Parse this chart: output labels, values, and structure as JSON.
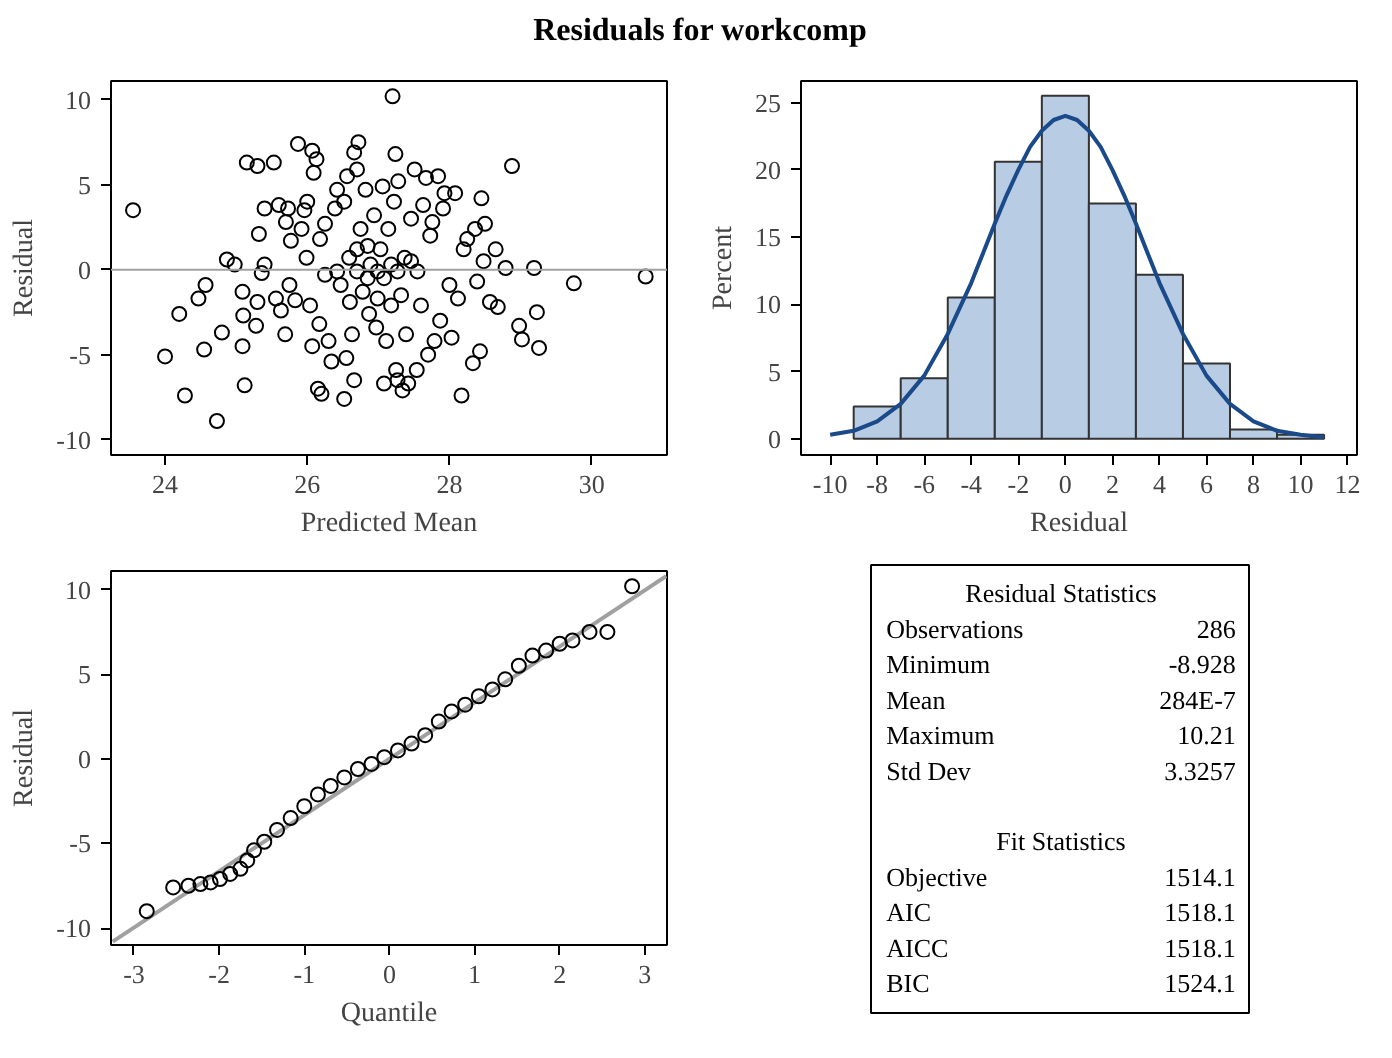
{
  "chart_data": [
    {
      "type": "scatter",
      "title": "Residuals for workcomp",
      "xlabel": "Predicted Mean",
      "ylabel": "Residual",
      "marker": "circle",
      "xlim": [
        23.24,
        31.06
      ],
      "ylim": [
        -10.9,
        11.1
      ],
      "xticks": [
        24,
        26,
        28,
        30
      ],
      "yticks": [
        -10,
        -5,
        0,
        5,
        10
      ],
      "ref_lines": [
        {
          "axis": "y",
          "value": 0,
          "color": "#a0a0a0"
        }
      ],
      "series": [
        {
          "color": "#000000",
          "x": [
            23.55,
            24.0,
            24.2,
            24.28,
            24.47,
            24.55,
            24.57,
            24.73,
            24.8,
            24.87,
            24.98,
            25.09,
            25.09,
            25.12,
            25.15,
            25.1,
            25.28,
            25.3,
            25.32,
            25.3,
            25.36,
            25.4,
            25.4,
            25.53,
            25.56,
            25.6,
            25.63,
            25.69,
            25.7,
            25.73,
            25.75,
            25.77,
            25.83,
            25.87,
            25.92,
            25.96,
            25.99,
            26.0,
            26.04,
            26.07,
            26.07,
            26.09,
            26.13,
            26.15,
            26.18,
            26.2,
            26.17,
            26.25,
            26.25,
            26.3,
            26.34,
            26.39,
            26.42,
            26.47,
            26.52,
            26.52,
            26.55,
            26.56,
            26.59,
            26.63,
            26.66,
            26.66,
            26.7,
            26.72,
            26.75,
            26.78,
            26.82,
            26.85,
            26.87,
            26.89,
            26.94,
            26.97,
            26.99,
            27.03,
            27.06,
            27.08,
            27.11,
            27.14,
            27.18,
            27.2,
            27.22,
            27.24,
            27.25,
            27.27,
            27.28,
            27.32,
            27.34,
            27.37,
            27.39,
            27.42,
            27.46,
            27.51,
            27.54,
            27.55,
            27.6,
            27.63,
            27.67,
            27.7,
            27.73,
            27.76,
            27.79,
            27.84,
            27.87,
            27.91,
            27.93,
            28.0,
            28.03,
            28.08,
            28.12,
            28.17,
            28.2,
            28.25,
            28.33,
            28.36,
            28.39,
            28.43,
            28.45,
            28.48,
            28.5,
            28.57,
            28.65,
            28.68,
            28.79,
            28.88,
            29.19,
            29.23,
            28.98,
            29.02,
            29.26,
            29.75,
            30.76,
            26.7,
            26.85,
            27.08,
            27.18,
            27.27,
            26.99,
            26.6,
            27.46,
            26.42,
            26.7
          ],
          "values": [
            3.5,
            -5.1,
            -2.6,
            -7.4,
            -1.7,
            -4.7,
            -0.9,
            -8.9,
            -3.7,
            0.6,
            0.3,
            -4.5,
            -1.3,
            -6.8,
            6.3,
            -2.7,
            -3.3,
            6.1,
            2.1,
            -1.9,
            -0.2,
            3.6,
            0.3,
            6.3,
            -1.7,
            3.8,
            -2.4,
            -3.8,
            2.8,
            3.6,
            -0.9,
            1.7,
            -1.8,
            7.4,
            2.4,
            3.5,
            0.7,
            4.0,
            -2.1,
            7.0,
            -4.5,
            5.7,
            6.5,
            -7.0,
            1.8,
            -7.3,
            -3.2,
            2.7,
            -0.3,
            -4.2,
            -5.4,
            3.6,
            4.7,
            -0.9,
            4.0,
            -7.6,
            -5.2,
            5.5,
            0.7,
            -3.8,
            6.9,
            -6.5,
            5.9,
            7.5,
            2.4,
            -1.3,
            4.7,
            1.4,
            -2.6,
            0.3,
            3.2,
            -3.4,
            -0.1,
            1.2,
            4.9,
            -6.7,
            -4.2,
            2.4,
            -2.1,
            10.2,
            4.0,
            6.8,
            -5.9,
            -6.5,
            5.2,
            -1.5,
            -7.1,
            0.7,
            -3.8,
            -6.7,
            3.0,
            5.9,
            -5.9,
            -0.1,
            -2.1,
            3.8,
            5.4,
            -5.0,
            2.0,
            2.8,
            -4.2,
            5.5,
            -3.0,
            3.6,
            4.5,
            -0.9,
            -4.0,
            4.5,
            -1.7,
            -7.4,
            1.2,
            1.8,
            -5.5,
            2.4,
            -0.7,
            -4.8,
            4.2,
            0.5,
            2.7,
            -1.9,
            1.2,
            -2.2,
            0.1,
            6.1,
            0.1,
            -2.5,
            -3.3,
            -4.1,
            -4.6,
            -0.8,
            -0.4,
            -0.1,
            -0.5,
            -0.5,
            0.3,
            -0.1,
            -1.7,
            -1.9,
            0.5,
            -0.1,
            1.2
          ]
        }
      ]
    },
    {
      "type": "histogram",
      "xlabel": "Residual",
      "ylabel": "Percent",
      "xlim": [
        -11.24,
        12.4
      ],
      "ylim": [
        -1.2,
        26.6
      ],
      "xticks": [
        -10,
        -8,
        -6,
        -4,
        -2,
        0,
        2,
        4,
        6,
        8,
        10,
        12
      ],
      "yticks": [
        0,
        5,
        10,
        15,
        20,
        25
      ],
      "bins": [
        -9,
        -7,
        -5,
        -3,
        -1,
        1,
        3,
        5,
        7,
        9,
        11
      ],
      "values": [
        2.4,
        4.5,
        10.5,
        20.6,
        25.5,
        17.5,
        12.2,
        5.6,
        0.7,
        0.3
      ],
      "color": "#b8cce4",
      "series": [
        {
          "type": "line",
          "color": "#1a4a8a",
          "x": [
            -10,
            -9,
            -8,
            -7,
            -6,
            -5,
            -4,
            -3.5,
            -3,
            -2.5,
            -2,
            -1.5,
            -1,
            -0.5,
            0,
            0.5,
            1,
            1.5,
            2,
            2.5,
            3,
            3.5,
            4,
            5,
            6,
            7,
            8,
            9,
            10,
            11
          ],
          "values": [
            0.3,
            0.6,
            1.3,
            2.6,
            4.7,
            7.8,
            11.6,
            13.8,
            16.0,
            18.1,
            20.0,
            21.7,
            22.9,
            23.7,
            24.0,
            23.7,
            22.9,
            21.7,
            20.0,
            18.1,
            16.0,
            13.8,
            11.6,
            7.8,
            4.7,
            2.6,
            1.3,
            0.6,
            0.3,
            0.1
          ]
        }
      ]
    },
    {
      "type": "scatter",
      "xlabel": "Quantile",
      "ylabel": "Residual",
      "xlim": [
        -3.27,
        3.26
      ],
      "ylim": [
        -11,
        11.1
      ],
      "xticks": [
        -3,
        -2,
        -1,
        0,
        1,
        2,
        3
      ],
      "yticks": [
        -10,
        -5,
        0,
        5,
        10
      ],
      "series": [
        {
          "type": "line",
          "color": "#a0a0a0",
          "x": [
            -3.25,
            3.25
          ],
          "values": [
            -10.8,
            10.8
          ]
        },
        {
          "type": "scatter",
          "marker": "circle",
          "color": "#000000",
          "x": [
            -2.85,
            -2.54,
            -2.36,
            -2.22,
            -2.1,
            -1.99,
            -1.87,
            -1.75,
            -1.67,
            -1.59,
            -1.47,
            -1.32,
            -1.16,
            -1.0,
            -0.84,
            -0.69,
            -0.53,
            -0.37,
            -0.21,
            -0.06,
            0.1,
            0.26,
            0.42,
            0.58,
            0.73,
            0.89,
            1.05,
            1.21,
            1.36,
            1.52,
            1.68,
            1.84,
            2.0,
            2.15,
            2.35,
            2.56,
            2.85
          ],
          "values": [
            -9.0,
            -7.6,
            -7.5,
            -7.4,
            -7.3,
            -7.1,
            -6.8,
            -6.5,
            -6.0,
            -5.4,
            -4.9,
            -4.2,
            -3.5,
            -2.8,
            -2.1,
            -1.6,
            -1.1,
            -0.6,
            -0.3,
            0.1,
            0.5,
            0.9,
            1.4,
            2.2,
            2.8,
            3.2,
            3.7,
            4.1,
            4.7,
            5.5,
            6.1,
            6.4,
            6.8,
            7.0,
            7.5,
            7.5,
            10.2
          ]
        }
      ]
    },
    {
      "type": "other",
      "title": "Residual Statistics",
      "categories": [
        "Observations",
        "Minimum",
        "Mean",
        "Maximum",
        "Std Dev"
      ],
      "value_labels": [
        "286",
        "-8.928",
        "284E-7",
        "10.21",
        "3.3257"
      ]
    },
    {
      "type": "other",
      "title": "Fit Statistics",
      "categories": [
        "Objective",
        "AIC",
        "AICC",
        "BIC"
      ],
      "value_labels": [
        "1514.1",
        "1518.1",
        "1518.1",
        "1524.1"
      ]
    }
  ]
}
